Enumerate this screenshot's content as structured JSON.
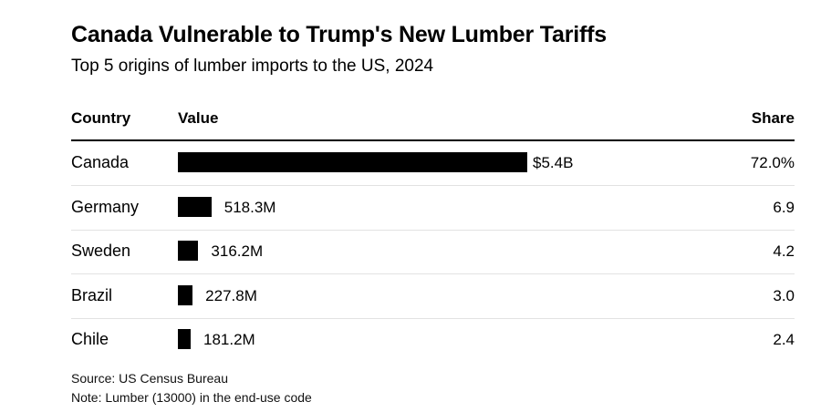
{
  "title": "Canada Vulnerable to Trump's New Lumber Tariffs",
  "subtitle": "Top 5 origins of lumber imports to the US, 2024",
  "headers": {
    "country": "Country",
    "value": "Value",
    "share": "Share"
  },
  "chart_data": {
    "type": "bar",
    "orientation": "horizontal",
    "categories": [
      "Canada",
      "Germany",
      "Sweden",
      "Brazil",
      "Chile"
    ],
    "values": [
      5400000000,
      518300000,
      316200000,
      227800000,
      181200000
    ],
    "value_labels": [
      "$5.4B",
      "518.3M",
      "316.2M",
      "227.8M",
      "181.2M"
    ],
    "share_labels": [
      "72.0%",
      "6.9",
      "4.2",
      "3.0",
      "2.4"
    ],
    "shares": [
      72.0,
      6.9,
      4.2,
      3.0,
      2.4
    ],
    "bar_color": "#000000"
  },
  "footer": {
    "source": "Source: US Census Bureau",
    "note": "Note: Lumber (13000) in the end-use code"
  }
}
